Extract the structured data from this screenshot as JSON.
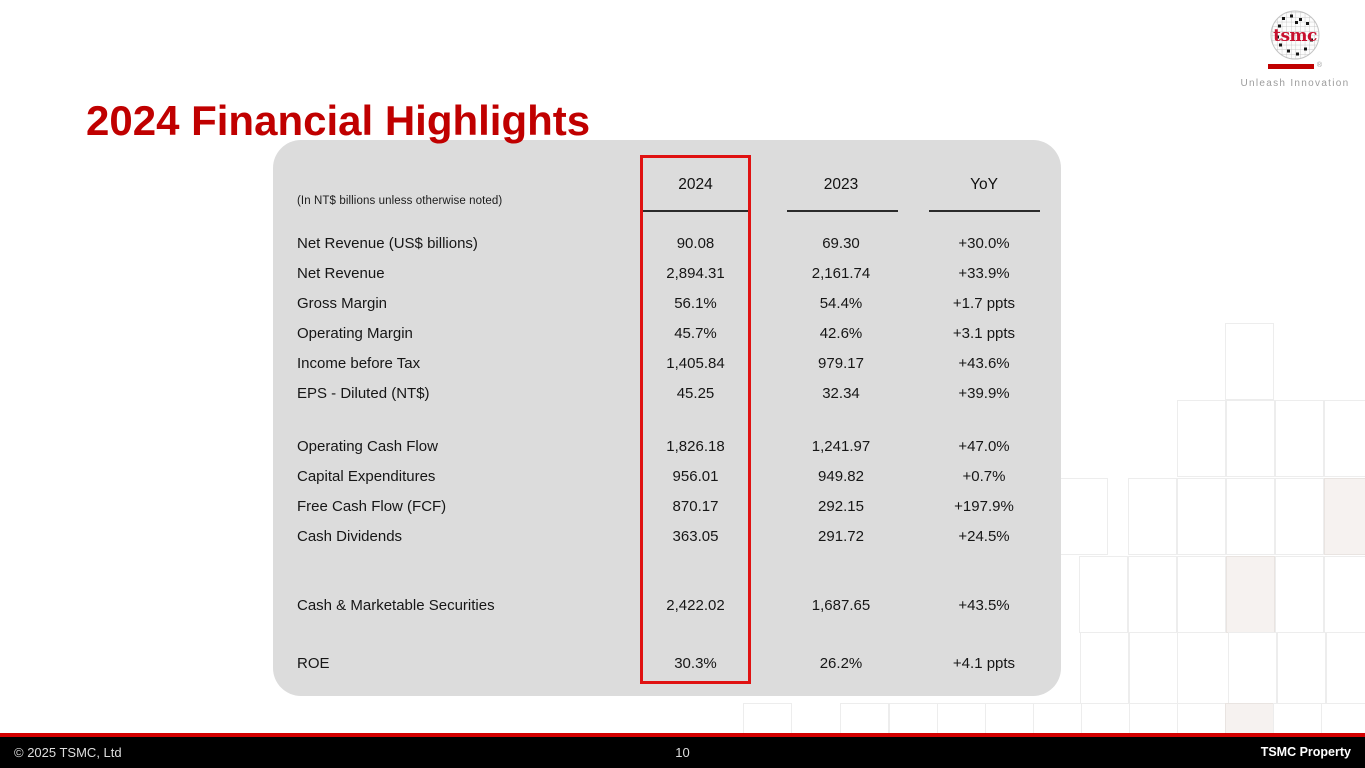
{
  "slide": {
    "title": "2024 Financial Highlights"
  },
  "logo": {
    "wordmark": "tsmc",
    "registered": "®",
    "tagline": "Unleash Innovation"
  },
  "table": {
    "note": "(In NT$ billions unless otherwise noted)",
    "columns": [
      "2024",
      "2023",
      "YoY"
    ],
    "highlighted_column": "2024",
    "rows": [
      {
        "label": "Net Revenue (US$ billions)",
        "v2024": "90.08",
        "v2023": "69.30",
        "yoy": "+30.0%",
        "group": 1
      },
      {
        "label": "Net Revenue",
        "v2024": "2,894.31",
        "v2023": "2,161.74",
        "yoy": "+33.9%",
        "group": 1
      },
      {
        "label": "Gross Margin",
        "v2024": "56.1%",
        "v2023": "54.4%",
        "yoy": "+1.7 ppts",
        "group": 1
      },
      {
        "label": "Operating Margin",
        "v2024": "45.7%",
        "v2023": "42.6%",
        "yoy": "+3.1 ppts",
        "group": 1
      },
      {
        "label": "Income before Tax",
        "v2024": "1,405.84",
        "v2023": "979.17",
        "yoy": "+43.6%",
        "group": 1
      },
      {
        "label": "EPS - Diluted (NT$)",
        "v2024": "45.25",
        "v2023": "32.34",
        "yoy": "+39.9%",
        "group": 1
      },
      {
        "label": "Operating Cash Flow",
        "v2024": "1,826.18",
        "v2023": "1,241.97",
        "yoy": "+47.0%",
        "group": 2
      },
      {
        "label": "Capital Expenditures",
        "v2024": "956.01",
        "v2023": "949.82",
        "yoy": "+0.7%",
        "group": 2
      },
      {
        "label": "Free Cash Flow (FCF)",
        "v2024": "870.17",
        "v2023": "292.15",
        "yoy": "+197.9%",
        "group": 2
      },
      {
        "label": "Cash Dividends",
        "v2024": "363.05",
        "v2023": "291.72",
        "yoy": "+24.5%",
        "group": 2
      },
      {
        "label": "Cash & Marketable Securities",
        "v2024": "2,422.02",
        "v2023": "1,687.65",
        "yoy": "+43.5%",
        "group": 3
      },
      {
        "label": "ROE",
        "v2024": "30.3%",
        "v2023": "26.2%",
        "yoy": "+4.1 ppts",
        "group": 4
      }
    ]
  },
  "footer": {
    "copyright": "© 2025 TSMC, Ltd",
    "page_number": "10",
    "property": "TSMC Property"
  },
  "colors": {
    "title_red": "#C00000",
    "highlight_box_red": "#E01212",
    "footer_line_red": "#D40000",
    "logo_red": "#C8102E",
    "table_background": "#DCDCDC",
    "footer_background": "#000000"
  }
}
